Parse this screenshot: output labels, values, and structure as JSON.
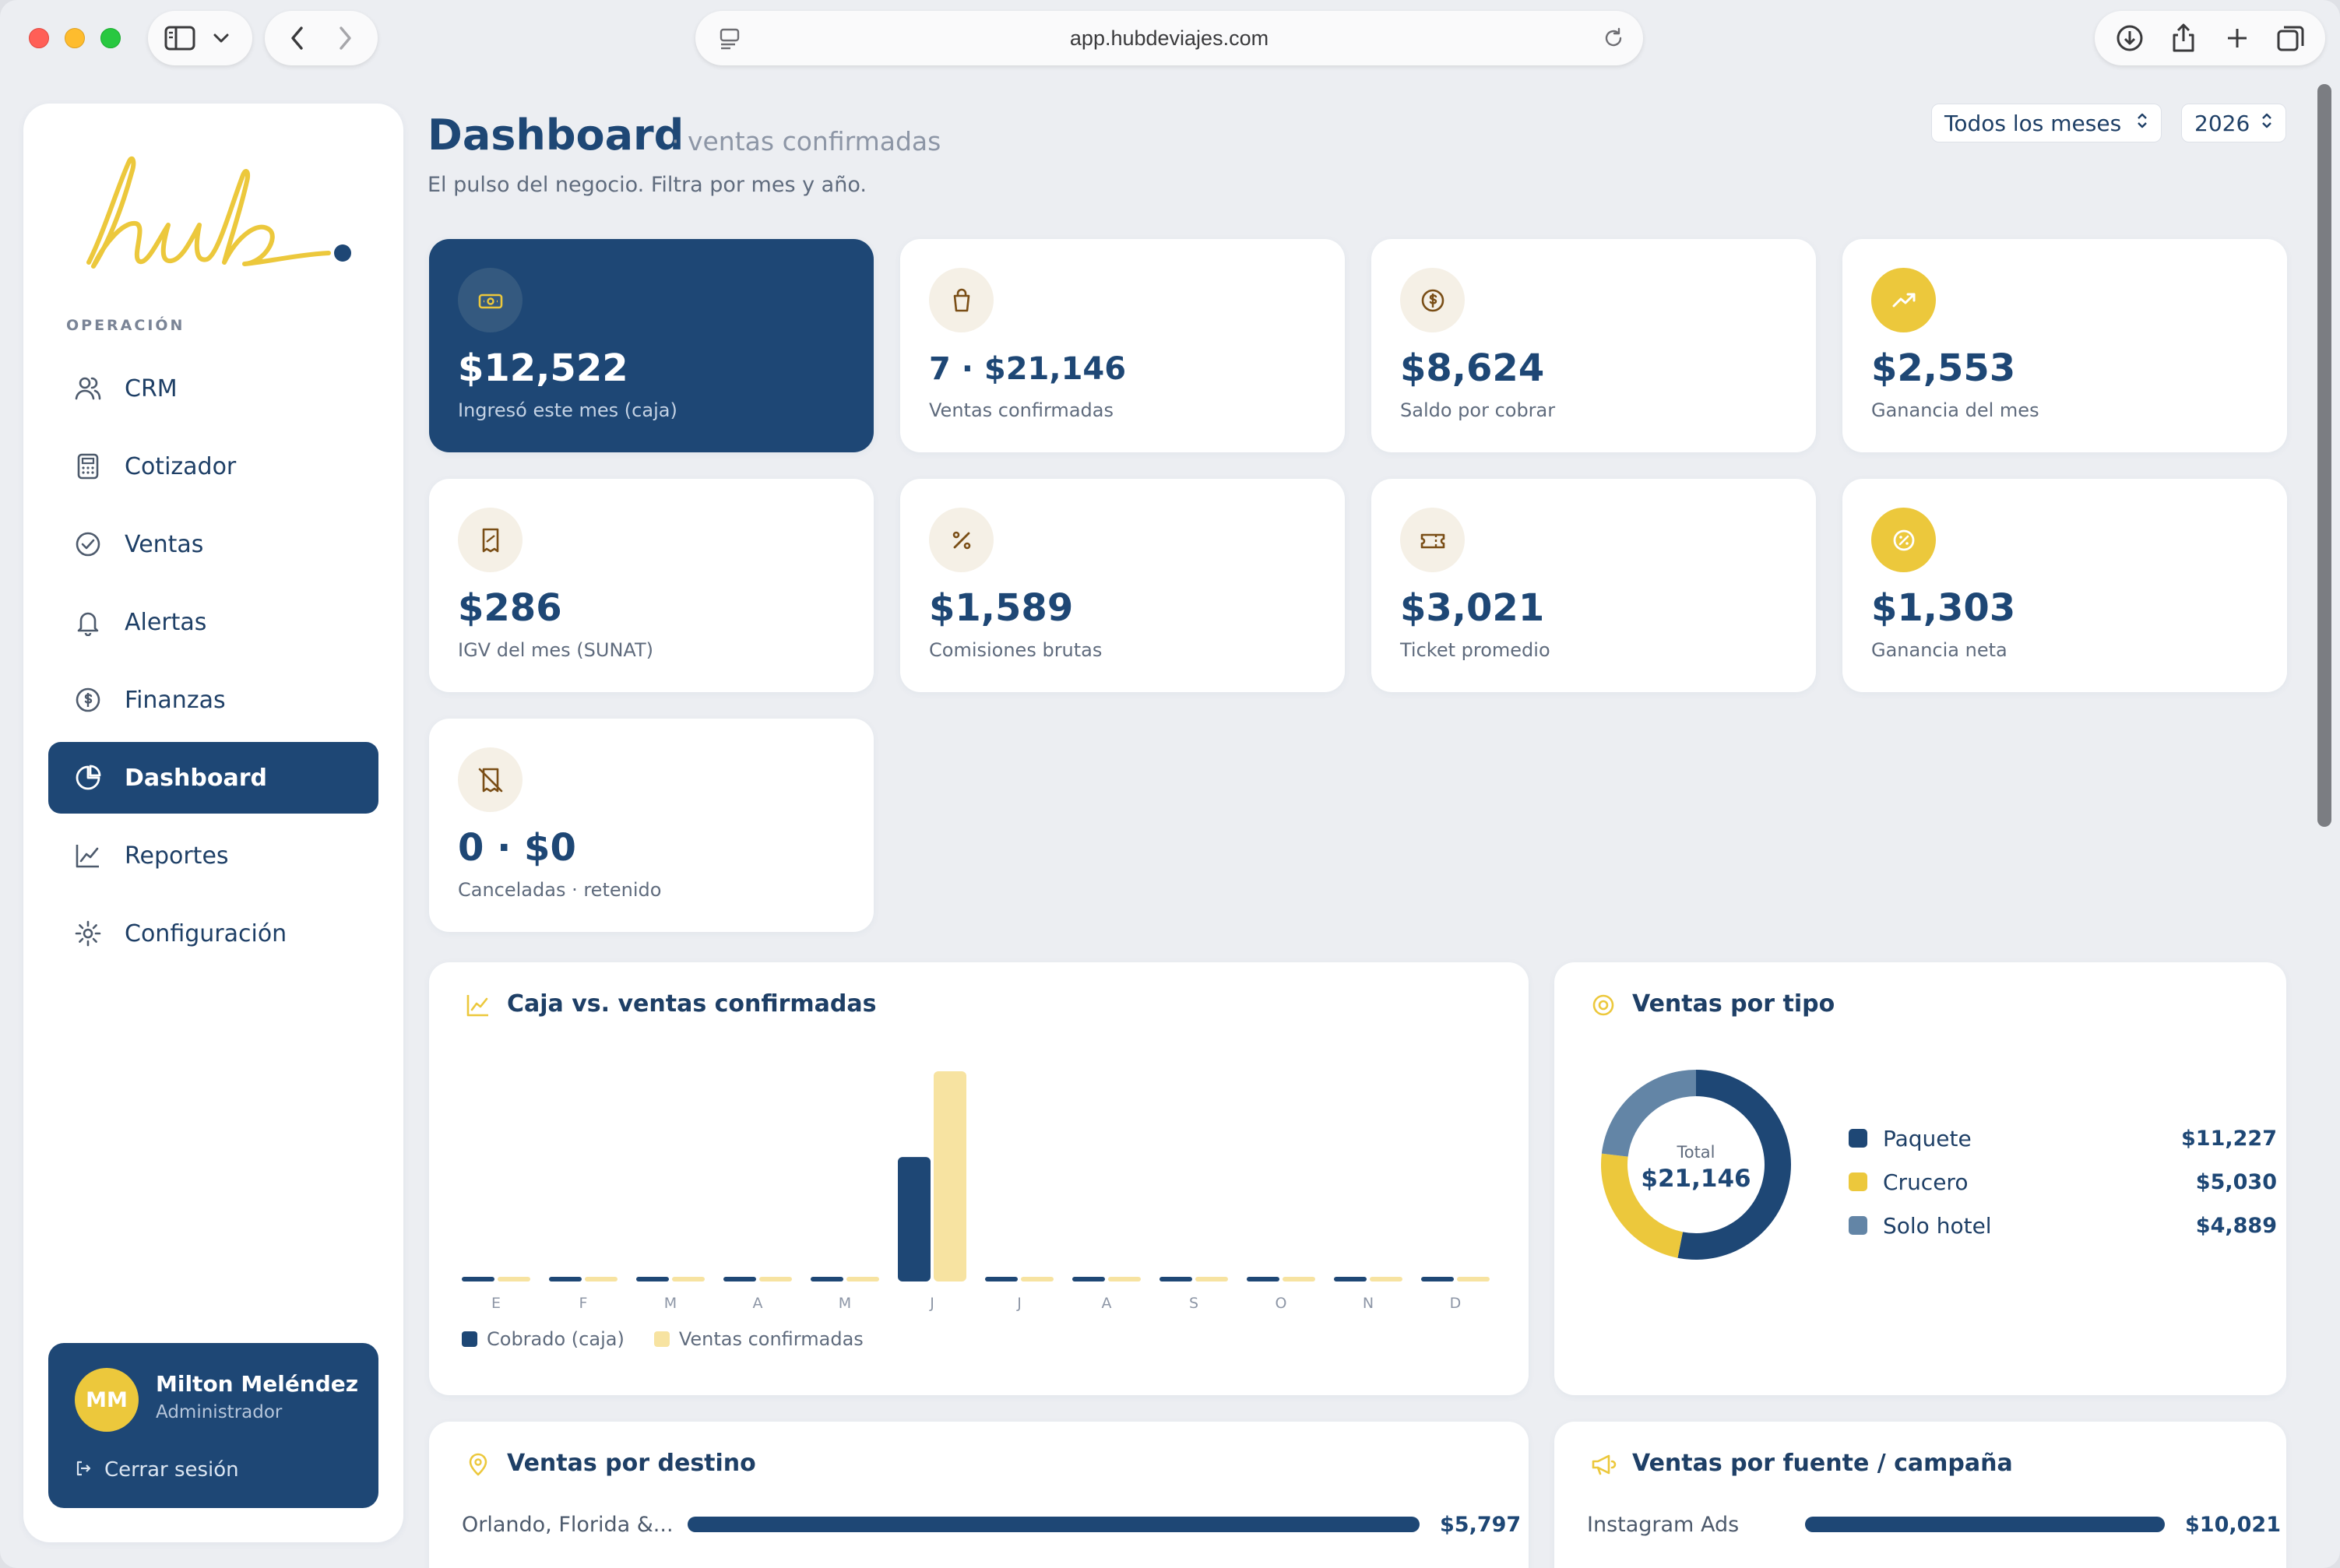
{
  "browser": {
    "url": "app.hubdeviajes.com"
  },
  "sidebar": {
    "logo_text": "hub",
    "section_label": "OPERACIÓN",
    "items": [
      {
        "label": "CRM",
        "icon": "users-icon"
      },
      {
        "label": "Cotizador",
        "icon": "calculator-icon"
      },
      {
        "label": "Ventas",
        "icon": "check-circle-icon"
      },
      {
        "label": "Alertas",
        "icon": "bell-icon"
      },
      {
        "label": "Finanzas",
        "icon": "dollar-circle-icon"
      },
      {
        "label": "Dashboard",
        "icon": "pie-chart-icon",
        "active": true
      },
      {
        "label": "Reportes",
        "icon": "line-chart-icon"
      },
      {
        "label": "Configuración",
        "icon": "gear-icon"
      }
    ],
    "user": {
      "initials": "MM",
      "name": "Milton Meléndez",
      "role": "Administrador",
      "logout_label": "Cerrar sesión"
    }
  },
  "header": {
    "title": "Dashboard",
    "subtitle": "· ventas confirmadas",
    "description": "El pulso del negocio. Filtra por mes y año.",
    "month_filter": "Todos los meses",
    "year_filter": "2026"
  },
  "kpis": [
    {
      "value": "$12,522",
      "label": "Ingresó este mes (caja)",
      "icon": "cash-icon"
    },
    {
      "value": "7 · $21,146",
      "label": "Ventas confirmadas",
      "icon": "shopping-bag-icon"
    },
    {
      "value": "$8,624",
      "label": "Saldo por cobrar",
      "icon": "dollar-circle-icon"
    },
    {
      "value": "$2,553",
      "label": "Ganancia del mes",
      "icon": "trending-up-icon"
    },
    {
      "value": "$286",
      "label": "IGV del mes (SUNAT)",
      "icon": "receipt-icon"
    },
    {
      "value": "$1,589",
      "label": "Comisiones brutas",
      "icon": "percent-icon"
    },
    {
      "value": "$3,021",
      "label": "Ticket promedio",
      "icon": "ticket-icon"
    },
    {
      "value": "$1,303",
      "label": "Ganancia neta",
      "icon": "badge-percent-icon"
    },
    {
      "value": "0 · $0",
      "label": "Canceladas · retenido",
      "icon": "receipt-off-icon"
    }
  ],
  "cash_chart": {
    "title": "Caja vs. ventas confirmadas",
    "legend": [
      {
        "name": "Cobrado (caja)",
        "color": "#1e4775"
      },
      {
        "name": "Ventas confirmadas",
        "color": "#f7e3a1"
      }
    ]
  },
  "chart_data": {
    "type": "bar",
    "categories": [
      "E",
      "F",
      "M",
      "A",
      "M",
      "J",
      "J",
      "A",
      "S",
      "O",
      "N",
      "D"
    ],
    "series": [
      {
        "name": "Cobrado (caja)",
        "values": [
          0,
          0,
          0,
          0,
          0,
          12522,
          0,
          0,
          0,
          0,
          0,
          0
        ]
      },
      {
        "name": "Ventas confirmadas",
        "values": [
          0,
          0,
          0,
          0,
          0,
          21146,
          0,
          0,
          0,
          0,
          0,
          0
        ]
      }
    ],
    "ylim": [
      0,
      21146
    ],
    "grid": false,
    "legend_position": "bottom-left"
  },
  "type_chart": {
    "title": "Ventas por tipo",
    "total_label": "Total",
    "total_value": "$21,146",
    "items": [
      {
        "name": "Paquete",
        "value": "$11,227",
        "amount": 11227,
        "color": "#1e4775"
      },
      {
        "name": "Crucero",
        "value": "$5,030",
        "amount": 5030,
        "color": "#ecc83c"
      },
      {
        "name": "Solo hotel",
        "value": "$4,889",
        "amount": 4889,
        "color": "#6385a6"
      }
    ]
  },
  "destino": {
    "title": "Ventas por destino",
    "rows": [
      {
        "name": "Orlando, Florida &...",
        "value": "$5,797",
        "fraction": 1.0
      }
    ]
  },
  "fuente": {
    "title": "Ventas por fuente / campaña",
    "rows": [
      {
        "name": "Instagram Ads",
        "value": "$10,021",
        "fraction": 1.0
      }
    ]
  }
}
